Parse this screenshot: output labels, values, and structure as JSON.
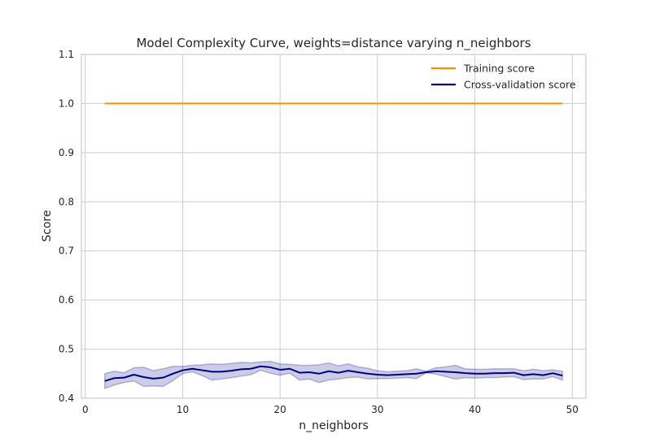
{
  "chart_data": {
    "type": "line",
    "title": "Model Complexity Curve, weights=distance varying n_neighbors",
    "xlabel": "n_neighbors",
    "ylabel": "Score",
    "xlim": [
      -0.4,
      51.4
    ],
    "ylim": [
      0.4,
      1.1
    ],
    "xticks": [
      0,
      10,
      20,
      30,
      40,
      50
    ],
    "yticks": [
      0.4,
      0.5,
      0.6,
      0.7,
      0.8,
      0.9,
      1.0,
      1.1
    ],
    "grid": true,
    "legend_position": "top-right",
    "x": [
      2,
      3,
      4,
      5,
      6,
      7,
      8,
      9,
      10,
      11,
      12,
      13,
      14,
      15,
      16,
      17,
      18,
      19,
      20,
      21,
      22,
      23,
      24,
      25,
      26,
      27,
      28,
      29,
      30,
      31,
      32,
      33,
      34,
      35,
      36,
      37,
      38,
      39,
      40,
      41,
      42,
      43,
      44,
      45,
      46,
      47,
      48,
      49
    ],
    "series": [
      {
        "name": "Training score",
        "color": "#ff8c00",
        "values": [
          1,
          1,
          1,
          1,
          1,
          1,
          1,
          1,
          1,
          1,
          1,
          1,
          1,
          1,
          1,
          1,
          1,
          1,
          1,
          1,
          1,
          1,
          1,
          1,
          1,
          1,
          1,
          1,
          1,
          1,
          1,
          1,
          1,
          1,
          1,
          1,
          1,
          1,
          1,
          1,
          1,
          1,
          1,
          1,
          1,
          1,
          1,
          1
        ],
        "band_lower": [
          1,
          1,
          1,
          1,
          1,
          1,
          1,
          1,
          1,
          1,
          1,
          1,
          1,
          1,
          1,
          1,
          1,
          1,
          1,
          1,
          1,
          1,
          1,
          1,
          1,
          1,
          1,
          1,
          1,
          1,
          1,
          1,
          1,
          1,
          1,
          1,
          1,
          1,
          1,
          1,
          1,
          1,
          1,
          1,
          1,
          1,
          1,
          1
        ],
        "band_upper": [
          1,
          1,
          1,
          1,
          1,
          1,
          1,
          1,
          1,
          1,
          1,
          1,
          1,
          1,
          1,
          1,
          1,
          1,
          1,
          1,
          1,
          1,
          1,
          1,
          1,
          1,
          1,
          1,
          1,
          1,
          1,
          1,
          1,
          1,
          1,
          1,
          1,
          1,
          1,
          1,
          1,
          1,
          1,
          1,
          1,
          1,
          1,
          1
        ]
      },
      {
        "name": "Cross-validation score",
        "color": "#000080",
        "values": [
          0.435,
          0.441,
          0.442,
          0.448,
          0.443,
          0.44,
          0.442,
          0.45,
          0.457,
          0.46,
          0.457,
          0.454,
          0.454,
          0.456,
          0.459,
          0.46,
          0.465,
          0.463,
          0.458,
          0.46,
          0.452,
          0.453,
          0.45,
          0.455,
          0.452,
          0.456,
          0.453,
          0.45,
          0.448,
          0.447,
          0.448,
          0.449,
          0.45,
          0.453,
          0.455,
          0.454,
          0.453,
          0.451,
          0.45,
          0.45,
          0.451,
          0.451,
          0.452,
          0.447,
          0.449,
          0.447,
          0.451,
          0.446
        ],
        "band_lower": [
          0.42,
          0.427,
          0.432,
          0.435,
          0.424,
          0.425,
          0.424,
          0.436,
          0.45,
          0.454,
          0.446,
          0.437,
          0.439,
          0.442,
          0.445,
          0.448,
          0.457,
          0.451,
          0.447,
          0.451,
          0.437,
          0.439,
          0.432,
          0.437,
          0.439,
          0.442,
          0.443,
          0.439,
          0.44,
          0.44,
          0.441,
          0.442,
          0.44,
          0.452,
          0.449,
          0.444,
          0.439,
          0.442,
          0.441,
          0.442,
          0.442,
          0.443,
          0.444,
          0.438,
          0.439,
          0.439,
          0.444,
          0.437
        ],
        "band_upper": [
          0.45,
          0.455,
          0.452,
          0.462,
          0.463,
          0.456,
          0.46,
          0.465,
          0.465,
          0.467,
          0.468,
          0.47,
          0.469,
          0.471,
          0.473,
          0.472,
          0.474,
          0.475,
          0.47,
          0.469,
          0.467,
          0.467,
          0.468,
          0.472,
          0.466,
          0.47,
          0.464,
          0.461,
          0.456,
          0.454,
          0.455,
          0.456,
          0.46,
          0.455,
          0.462,
          0.464,
          0.467,
          0.46,
          0.459,
          0.459,
          0.46,
          0.46,
          0.46,
          0.456,
          0.459,
          0.456,
          0.458,
          0.455
        ]
      }
    ]
  }
}
